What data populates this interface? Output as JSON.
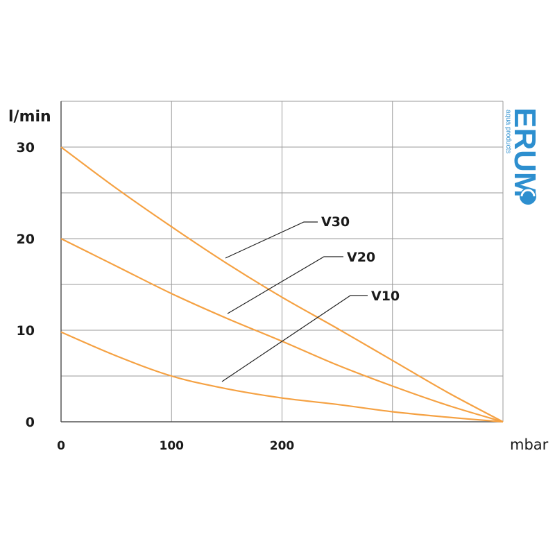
{
  "chart_data": {
    "type": "line",
    "xlabel": "mbar",
    "ylabel": "l/min",
    "x_ticks": [
      {
        "value": 0,
        "label": "0"
      },
      {
        "value": 100,
        "label": "100"
      },
      {
        "value": 200,
        "label": "200"
      }
    ],
    "y_ticks": [
      {
        "value": 0,
        "label": "0"
      },
      {
        "value": 10,
        "label": "10"
      },
      {
        "value": 20,
        "label": "20"
      },
      {
        "value": 30,
        "label": "30"
      }
    ],
    "xlim": [
      0,
      400
    ],
    "ylim": [
      0,
      35
    ],
    "x_grid_step": 100,
    "y_grid_step": 5,
    "grid": true,
    "line_color": "#f5a142",
    "series": [
      {
        "name": "V30",
        "x": [
          0,
          50,
          100,
          150,
          200,
          250,
          300,
          350,
          400
        ],
        "y": [
          30,
          25.5,
          21.3,
          17.3,
          13.6,
          10.2,
          6.7,
          3.2,
          0
        ]
      },
      {
        "name": "V20",
        "x": [
          0,
          50,
          100,
          150,
          200,
          250,
          300,
          350,
          400
        ],
        "y": [
          20,
          17,
          14,
          11.3,
          8.8,
          6.2,
          3.9,
          1.8,
          0
        ]
      },
      {
        "name": "V10",
        "x": [
          0,
          50,
          100,
          150,
          200,
          250,
          300,
          350,
          400
        ],
        "y": [
          9.8,
          7.2,
          5,
          3.6,
          2.6,
          1.9,
          1.1,
          0.5,
          0
        ]
      }
    ]
  },
  "logo": {
    "name": "ERUM",
    "tagline": "aqua products"
  }
}
